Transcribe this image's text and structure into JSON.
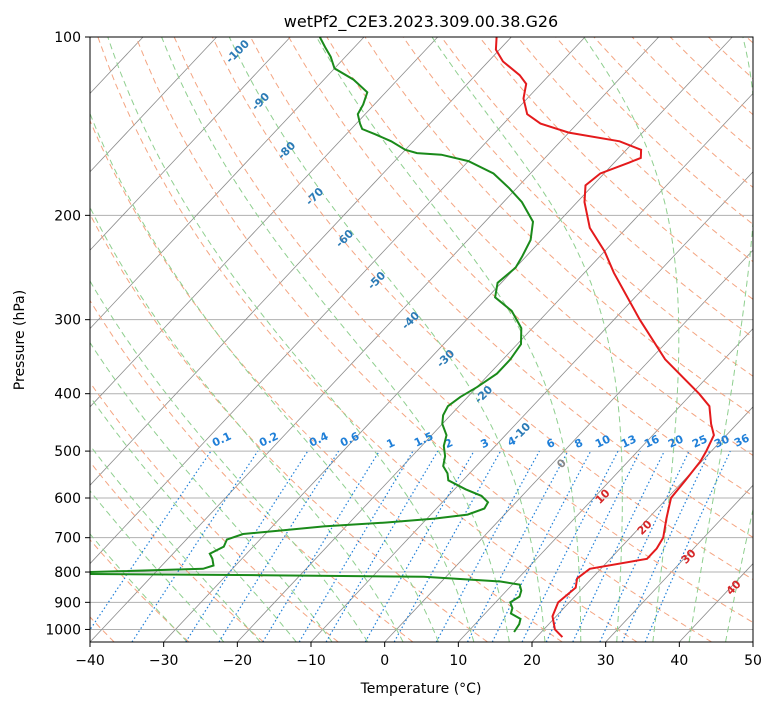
{
  "chart_data": {
    "type": "line",
    "title": "wetPf2_C2E3.2023.309.00.38.G26",
    "xlabel": "Temperature (°C)",
    "ylabel": "Pressure (hPa)",
    "xlim": [
      -40,
      50
    ],
    "ylim": [
      1050,
      100
    ],
    "y_scale": "log",
    "x_ticks": [
      -40,
      -30,
      -20,
      -10,
      0,
      10,
      20,
      30,
      40,
      50
    ],
    "y_ticks": [
      100,
      200,
      300,
      400,
      500,
      600,
      700,
      800,
      900,
      1000
    ],
    "grid": true,
    "colors": {
      "temperature": "#e41a1c",
      "dewpoint": "#1a8a1a",
      "isotherm": "#8c8c8c",
      "dry_adiabat": "#f4a582",
      "moist_adiabat": "#8fcf8f",
      "mixing_ratio": "#1f7fd8",
      "dry_label": "#d62728",
      "wet_label": "#2c7bb6",
      "zero_label": "#888888"
    },
    "series": [
      {
        "role": "temperature",
        "points": [
          [
            23.5,
            1030
          ],
          [
            21.5,
            1000
          ],
          [
            19.5,
            950
          ],
          [
            18.5,
            900
          ],
          [
            19.0,
            850
          ],
          [
            18.0,
            820
          ],
          [
            18.5,
            790
          ],
          [
            25.0,
            760
          ],
          [
            25.0,
            730
          ],
          [
            24.5,
            700
          ],
          [
            22.5,
            650
          ],
          [
            20.5,
            600
          ],
          [
            20.2,
            560
          ],
          [
            19.8,
            520
          ],
          [
            19.3,
            500
          ],
          [
            18.3,
            470
          ],
          [
            16.5,
            450
          ],
          [
            14.0,
            420
          ],
          [
            11.0,
            400
          ],
          [
            2.0,
            350
          ],
          [
            -6.5,
            300
          ],
          [
            -16.0,
            250
          ],
          [
            -20.0,
            230
          ],
          [
            -25.0,
            210
          ],
          [
            -29.0,
            190
          ],
          [
            -31.0,
            178
          ],
          [
            -30.5,
            170
          ],
          [
            -28.0,
            163
          ],
          [
            -27.0,
            160
          ],
          [
            -28.0,
            155
          ],
          [
            -32.0,
            150
          ],
          [
            -40.0,
            145
          ],
          [
            -45.0,
            140
          ],
          [
            -48.0,
            135
          ],
          [
            -50.5,
            127
          ],
          [
            -52.0,
            120
          ],
          [
            -54.0,
            116
          ],
          [
            -58.0,
            110
          ],
          [
            -60.5,
            105
          ],
          [
            -62.0,
            100
          ]
        ]
      },
      {
        "role": "dewpoint",
        "points": [
          [
            16.3,
            1010
          ],
          [
            16.0,
            980
          ],
          [
            15.5,
            960
          ],
          [
            13.5,
            940
          ],
          [
            13.0,
            920
          ],
          [
            12.0,
            900
          ],
          [
            12.5,
            880
          ],
          [
            12.0,
            860
          ],
          [
            11.0,
            840
          ],
          [
            8.0,
            830
          ],
          [
            -3.0,
            815
          ],
          [
            -25.0,
            810
          ],
          [
            -56.0,
            805
          ],
          [
            -34.0,
            790
          ],
          [
            -33.0,
            780
          ],
          [
            -34.0,
            760
          ],
          [
            -35.0,
            745
          ],
          [
            -34.0,
            725
          ],
          [
            -34.5,
            705
          ],
          [
            -33.0,
            690
          ],
          [
            -28.0,
            680
          ],
          [
            -23.0,
            670
          ],
          [
            -15.0,
            660
          ],
          [
            -9.0,
            650
          ],
          [
            -5.0,
            640
          ],
          [
            -3.5,
            625
          ],
          [
            -3.8,
            610
          ],
          [
            -5.5,
            595
          ],
          [
            -8.5,
            580
          ],
          [
            -12.0,
            560
          ],
          [
            -13.0,
            545
          ],
          [
            -14.5,
            530
          ],
          [
            -15.5,
            510
          ],
          [
            -17.0,
            490
          ],
          [
            -18.0,
            470
          ],
          [
            -20.0,
            450
          ],
          [
            -21.0,
            435
          ],
          [
            -21.5,
            420
          ],
          [
            -21.0,
            405
          ],
          [
            -20.0,
            390
          ],
          [
            -19.0,
            370
          ],
          [
            -19.0,
            350
          ],
          [
            -19.5,
            330
          ],
          [
            -21.5,
            310
          ],
          [
            -25.0,
            290
          ],
          [
            -29.0,
            275
          ],
          [
            -30.5,
            260
          ],
          [
            -30.0,
            245
          ],
          [
            -30.5,
            235
          ],
          [
            -31.5,
            220
          ],
          [
            -33.5,
            205
          ],
          [
            -37.5,
            190
          ],
          [
            -41.0,
            180
          ],
          [
            -45.0,
            170
          ],
          [
            -50.0,
            162
          ],
          [
            -54.5,
            158
          ],
          [
            -58.0,
            157
          ],
          [
            -60.0,
            155
          ],
          [
            -63.0,
            150
          ],
          [
            -66.0,
            146
          ],
          [
            -68.5,
            143
          ],
          [
            -69.5,
            140
          ],
          [
            -71.0,
            135
          ],
          [
            -71.5,
            130
          ],
          [
            -72.5,
            124
          ],
          [
            -76.0,
            118
          ],
          [
            -80.0,
            113
          ],
          [
            -82.0,
            108
          ],
          [
            -84.0,
            104
          ],
          [
            -86.0,
            100
          ]
        ]
      }
    ],
    "dry_adiabat_labels": [
      "0",
      "10",
      "20",
      "30",
      "40"
    ],
    "moist_adiabat_labels": [
      "-100",
      "-90",
      "-80",
      "-70",
      "-60",
      "-50",
      "-40",
      "-30",
      "-20",
      "-10"
    ],
    "mixing_ratio_labels": [
      "0.1",
      "0.2",
      "0.4",
      "0.6",
      "1",
      "1.5",
      "2",
      "3",
      "4",
      "6",
      "8",
      "10",
      "13",
      "16",
      "20",
      "25",
      "30",
      "36"
    ]
  }
}
